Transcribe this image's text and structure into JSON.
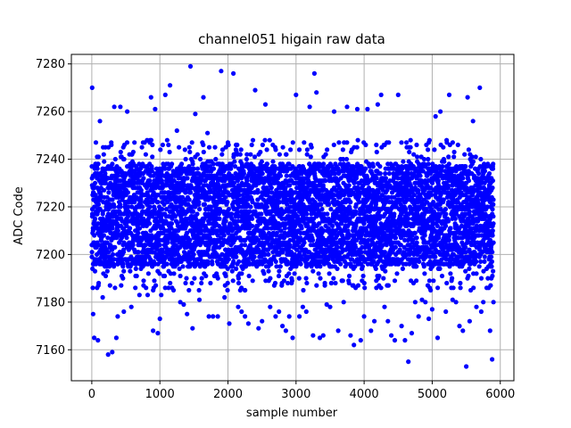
{
  "chart_data": {
    "type": "scatter",
    "title": "channel051 higain raw data",
    "xlabel": "sample number",
    "ylabel": "ADC Code",
    "xlim": [
      -300,
      6200
    ],
    "ylim": [
      7147,
      7284
    ],
    "xticks": [
      0,
      1000,
      2000,
      3000,
      4000,
      5000,
      6000
    ],
    "xtick_labels": [
      "0",
      "1000",
      "2000",
      "3000",
      "4000",
      "5000",
      "6000"
    ],
    "yticks": [
      7160,
      7180,
      7200,
      7220,
      7240,
      7260,
      7280
    ],
    "ytick_labels": [
      "7160",
      "7180",
      "7200",
      "7220",
      "7240",
      "7260",
      "7280"
    ],
    "grid": true,
    "marker_color": "#0000ff",
    "grid_color": "#b0b0b0",
    "series": [
      {
        "x": [
          5,
          20,
          35,
          60,
          90,
          120,
          160,
          200,
          240,
          300,
          330,
          360,
          380,
          420,
          470,
          520,
          580,
          640,
          700,
          760,
          820,
          870,
          900,
          930,
          970,
          1000,
          1020,
          1080,
          1150,
          1200,
          1250,
          1300,
          1350,
          1400,
          1450,
          1480,
          1520,
          1580,
          1640,
          1700,
          1720,
          1780,
          1850,
          1900,
          1950,
          2000,
          2020,
          2080,
          2150,
          2200,
          2250,
          2300,
          2350,
          2400,
          2450,
          2500,
          2550,
          2620,
          2700,
          2750,
          2800,
          2850,
          2900,
          2950,
          3000,
          3050,
          3100,
          3150,
          3200,
          3250,
          3270,
          3300,
          3350,
          3400,
          3450,
          3500,
          3560,
          3620,
          3700,
          3750,
          3800,
          3850,
          3900,
          3950,
          4000,
          4050,
          4100,
          4150,
          4200,
          4250,
          4300,
          4350,
          4400,
          4450,
          4500,
          4550,
          4600,
          4650,
          4700,
          4750,
          4800,
          4850,
          4900,
          4950,
          5000,
          5050,
          5080,
          5120,
          5200,
          5250,
          5300,
          5350,
          5400,
          5450,
          5500,
          5520,
          5550,
          5600,
          5650,
          5700,
          5720,
          5750,
          5800,
          5850,
          5880,
          5900
        ],
        "y": [
          7270,
          7175,
          7165,
          7247,
          7164,
          7256,
          7182,
          7245,
          7158,
          7159,
          7262,
          7165,
          7174,
          7262,
          7176,
          7260,
          7178,
          7186,
          7183,
          7187,
          7183,
          7266,
          7168,
          7261,
          7167,
          7173,
          7183,
          7267,
          7271,
          7185,
          7252,
          7180,
          7179,
          7175,
          7279,
          7169,
          7259,
          7181,
          7266,
          7251,
          7174,
          7174,
          7174,
          7277,
          7182,
          7246,
          7171,
          7276,
          7178,
          7176,
          7174,
          7171,
          7246,
          7269,
          7169,
          7172,
          7263,
          7178,
          7174,
          7176,
          7170,
          7168,
          7174,
          7165,
          7267,
          7174,
          7178,
          7176,
          7262,
          7166,
          7276,
          7268,
          7165,
          7166,
          7179,
          7178,
          7260,
          7168,
          7180,
          7262,
          7166,
          7162,
          7261,
          7164,
          7174,
          7261,
          7168,
          7172,
          7263,
          7267,
          7178,
          7172,
          7166,
          7164,
          7267,
          7170,
          7164,
          7155,
          7167,
          7180,
          7174,
          7181,
          7180,
          7173,
          7177,
          7258,
          7165,
          7260,
          7176,
          7267,
          7181,
          7180,
          7170,
          7168,
          7153,
          7266,
          7172,
          7256,
          7178,
          7270,
          7176,
          7180,
          7186,
          7168,
          7156,
          7180
        ]
      }
    ],
    "dense_band": {
      "x_start": 0,
      "x_end": 5900,
      "sample_count": 5900,
      "core_range": [
        7195,
        7238
      ],
      "spread_range": [
        7185,
        7248
      ]
    }
  }
}
